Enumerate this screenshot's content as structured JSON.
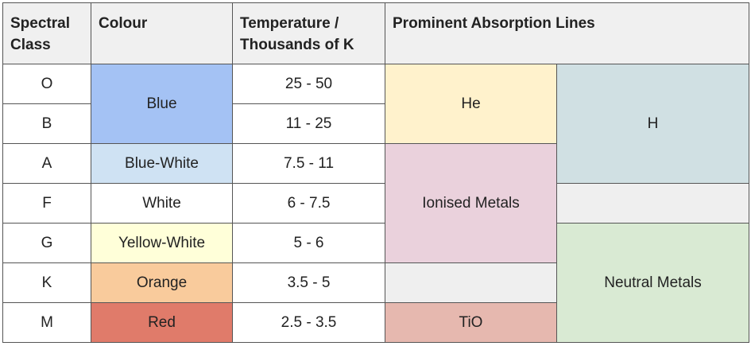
{
  "headers": {
    "spectral_class": "Spectral Class",
    "colour": "Colour",
    "temperature": "Temperature / Thousands of K",
    "absorption": "Prominent Absorption Lines"
  },
  "rows": [
    {
      "class": "O",
      "temp": "25 - 50"
    },
    {
      "class": "B",
      "temp": "11 - 25"
    },
    {
      "class": "A",
      "temp": "7.5 - 11"
    },
    {
      "class": "F",
      "temp": "6 - 7.5"
    },
    {
      "class": "G",
      "temp": "5 - 6"
    },
    {
      "class": "K",
      "temp": "3.5 - 5"
    },
    {
      "class": "M",
      "temp": "2.5 - 3.5"
    }
  ],
  "colours": {
    "blue": "Blue",
    "blue_white": "Blue-White",
    "white": "White",
    "yellow_white": "Yellow-White",
    "orange": "Orange",
    "red": "Red"
  },
  "absorption_lines": {
    "he": "He",
    "h": "H",
    "ionised_metals": "Ionised Metals",
    "neutral_metals": "Neutral Metals",
    "tio": "TiO"
  },
  "cell_colors": {
    "header": "#f0f0f0",
    "blue": "#a4c2f4",
    "blue_white": "#cfe2f3",
    "white": "#ffffff",
    "yellow_white": "#ffffd9",
    "orange": "#f9cb9c",
    "red": "#e07b6a",
    "he": "#fff2cc",
    "h": "#d0e0e3",
    "ionised_metals": "#ead1dc",
    "neutral_metals": "#d9ead3",
    "tio": "#e6b8af",
    "empty": "#efefef"
  }
}
